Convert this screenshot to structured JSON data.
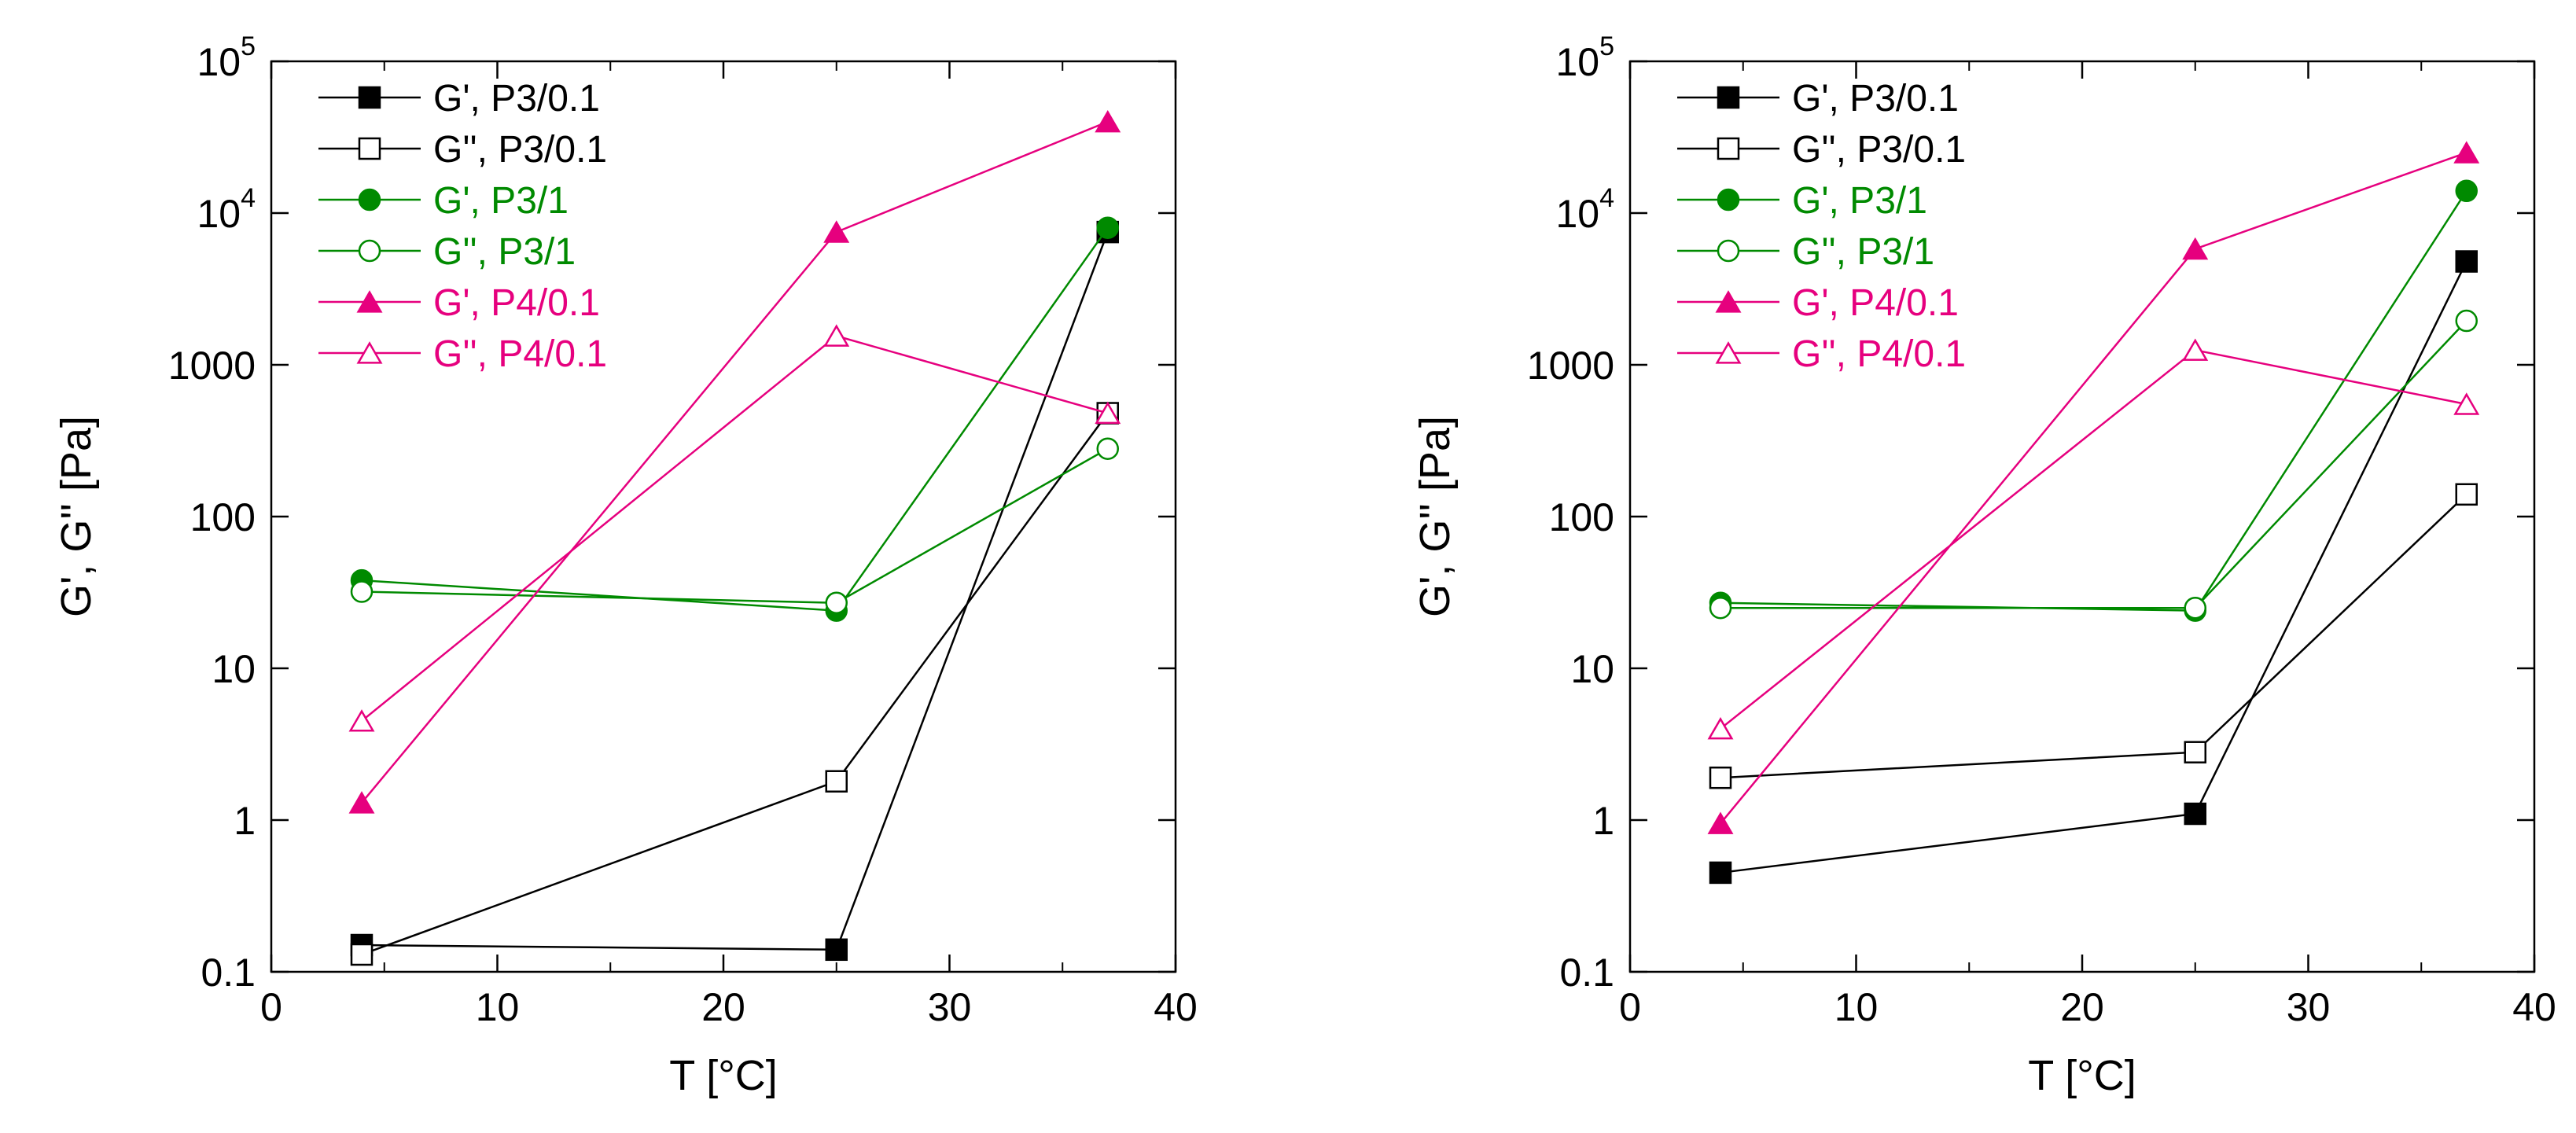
{
  "chart_data": [
    {
      "type": "line",
      "yscale": "log",
      "xlabel": "T [°C]",
      "ylabel": "G', G'' [Pa]",
      "xlim": [
        0,
        40
      ],
      "ylim": [
        0.1,
        100000
      ],
      "xticks": [
        0,
        10,
        20,
        30,
        40
      ],
      "xtick_labels": [
        "0",
        "10",
        "20",
        "30",
        "40"
      ],
      "yticks": [
        0.1,
        1,
        10,
        100,
        1000,
        10000,
        100000
      ],
      "ytick_labels": [
        {
          "text": "0.1"
        },
        {
          "text": "1"
        },
        {
          "text": "10"
        },
        {
          "text": "100"
        },
        {
          "text": "1000"
        },
        {
          "base": "10",
          "exp": "4"
        },
        {
          "base": "10",
          "exp": "5"
        }
      ],
      "legend_position": "top-left",
      "series": [
        {
          "name": "G', P3/0.1",
          "color": "#000000",
          "marker": "square",
          "filled": true,
          "x": [
            4,
            25,
            37
          ],
          "y": [
            0.15,
            0.14,
            7500
          ]
        },
        {
          "name": "G'', P3/0.1",
          "color": "#000000",
          "marker": "square",
          "filled": false,
          "x": [
            4,
            25,
            37
          ],
          "y": [
            0.13,
            1.8,
            480
          ]
        },
        {
          "name": "G', P3/1",
          "color": "#008a00",
          "marker": "circle",
          "filled": true,
          "x": [
            4,
            25,
            37
          ],
          "y": [
            38,
            24,
            8000
          ]
        },
        {
          "name": "G'', P3/1",
          "color": "#008a00",
          "marker": "circle",
          "filled": false,
          "x": [
            4,
            25,
            37
          ],
          "y": [
            32,
            27,
            280
          ]
        },
        {
          "name": "G', P4/0.1",
          "color": "#e6007e",
          "marker": "triangle",
          "filled": true,
          "x": [
            4,
            25,
            37
          ],
          "y": [
            1.3,
            7500,
            40000
          ]
        },
        {
          "name": "G'', P4/0.1",
          "color": "#e6007e",
          "marker": "triangle",
          "filled": false,
          "x": [
            4,
            25,
            37
          ],
          "y": [
            4.5,
            1550,
            480
          ]
        }
      ]
    },
    {
      "type": "line",
      "yscale": "log",
      "xlabel": "T [°C]",
      "ylabel": "G', G'' [Pa]",
      "xlim": [
        0,
        40
      ],
      "ylim": [
        0.1,
        100000
      ],
      "xticks": [
        0,
        10,
        20,
        30,
        40
      ],
      "xtick_labels": [
        "0",
        "10",
        "20",
        "30",
        "40"
      ],
      "yticks": [
        0.1,
        1,
        10,
        100,
        1000,
        10000,
        100000
      ],
      "ytick_labels": [
        {
          "text": "0.1"
        },
        {
          "text": "1"
        },
        {
          "text": "10"
        },
        {
          "text": "100"
        },
        {
          "text": "1000"
        },
        {
          "base": "10",
          "exp": "4"
        },
        {
          "base": "10",
          "exp": "5"
        }
      ],
      "legend_position": "top-left",
      "series": [
        {
          "name": "G', P3/0.1",
          "color": "#000000",
          "marker": "square",
          "filled": true,
          "x": [
            4,
            25,
            37
          ],
          "y": [
            0.45,
            1.1,
            4800
          ]
        },
        {
          "name": "G'', P3/0.1",
          "color": "#000000",
          "marker": "square",
          "filled": false,
          "x": [
            4,
            25,
            37
          ],
          "y": [
            1.9,
            2.8,
            140
          ]
        },
        {
          "name": "G', P3/1",
          "color": "#008a00",
          "marker": "circle",
          "filled": true,
          "x": [
            4,
            25,
            37
          ],
          "y": [
            27,
            24,
            14000
          ]
        },
        {
          "name": "G'', P3/1",
          "color": "#008a00",
          "marker": "circle",
          "filled": false,
          "x": [
            4,
            25,
            37
          ],
          "y": [
            25,
            25,
            1950
          ]
        },
        {
          "name": "G', P4/0.1",
          "color": "#e6007e",
          "marker": "triangle",
          "filled": true,
          "x": [
            4,
            25,
            37
          ],
          "y": [
            0.95,
            5800,
            25000
          ]
        },
        {
          "name": "G'', P4/0.1",
          "color": "#e6007e",
          "marker": "triangle",
          "filled": false,
          "x": [
            4,
            25,
            37
          ],
          "y": [
            4,
            1250,
            550
          ]
        }
      ]
    }
  ]
}
